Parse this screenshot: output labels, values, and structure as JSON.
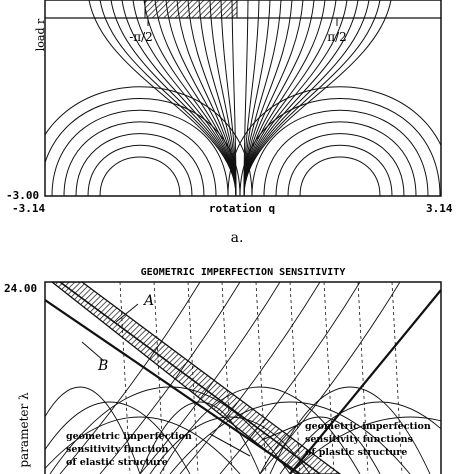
{
  "figure_a": {
    "ylabel": "load r",
    "xlabel": "rotation q",
    "y_min_label": "-3.00",
    "x_min_label": "-3.14",
    "x_max_label": "3.14",
    "left_tick_label": "-π/2",
    "right_tick_label": "π/2",
    "caption": "a."
  },
  "figure_b": {
    "title": "GEOMETRIC IMPERFECTION SENSITIVITY",
    "y_max_label": "24.00",
    "ylabel": "parameter λ",
    "curve_a_label": "A",
    "curve_b_label": "B",
    "annotation_elastic": [
      "geometric imperfection",
      "sensitivity function",
      "of elastic structure"
    ],
    "annotation_plastic": [
      "geometric imperfection",
      "sensitivity functions",
      "of plastic structure"
    ]
  },
  "colors": {
    "ink": "#111111",
    "paper": "#ffffff"
  }
}
